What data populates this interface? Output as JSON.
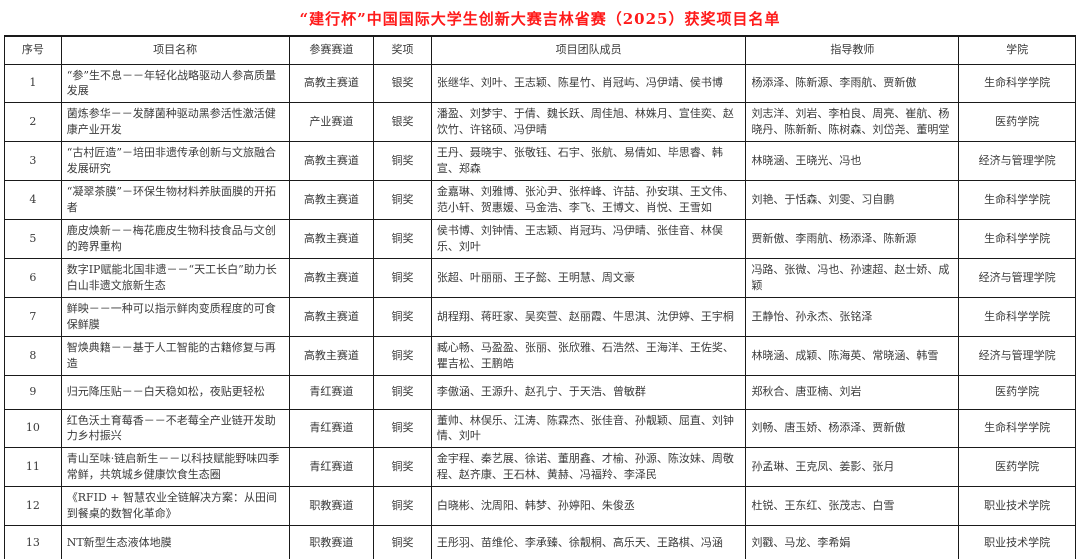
{
  "page": {
    "title": "“建行杯”中国国际大学生创新大赛吉林省赛（2025）获奖项目名单",
    "title_color": "#ff1a1a"
  },
  "table": {
    "columns": [
      "序号",
      "项目名称",
      "参赛赛道",
      "奖项",
      "项目团队成员",
      "指导教师",
      "学院"
    ],
    "rows": [
      {
        "index": "1",
        "name": "“参”生不息－－年轻化战略驱动人参高质量发展",
        "track": "高教主赛道",
        "award": "银奖",
        "members": "张继华、刘叶、王志颖、陈星竹、肖冠屿、冯伊靖、侯书博",
        "advisors": "杨添泽、陈新源、李雨航、贾新傲",
        "college": "生命科学学院"
      },
      {
        "index": "2",
        "name": "菌炼参华－－发酵菌种驱动黑参活性激活健康产业开发",
        "track": "产业赛道",
        "award": "银奖",
        "members": "潘盈、刘梦宇、于倩、魏长跃、周佳旭、林姝月、宣佳奕、赵饮竹、许铭硕、冯伊晴",
        "advisors": "刘志洋、刘岩、李柏良、周亮、崔航、杨晓丹、陈新新、陈树森、刘岱尧、董明堂",
        "college": "医药学院"
      },
      {
        "index": "3",
        "name": "“古村匠造”－培田非遗传承创新与文旅融合发展研究",
        "track": "高教主赛道",
        "award": "铜奖",
        "members": "王丹、聂晓宇、张敬钰、石宇、张航、易倩如、毕思睿、韩宣、郑森",
        "advisors": "林晓涵、王晓光、冯也",
        "college": "经济与管理学院"
      },
      {
        "index": "4",
        "name": "“凝翠茶膜”－环保生物材料养肤面膜的开拓者",
        "track": "高教主赛道",
        "award": "铜奖",
        "members": "金嘉琳、刘雅博、张沁尹、张梓峰、许喆、孙安琪、王文伟、范小轩、贺惠媛、马金浩、李飞、王博文、肖悦、王雪如",
        "advisors": "刘艳、于恬森、刘雯、习自鹏",
        "college": "生命科学学院"
      },
      {
        "index": "5",
        "name": "鹿皮焕新－－梅花鹿皮生物科技食品与文创的跨界重构",
        "track": "高教主赛道",
        "award": "铜奖",
        "members": "侯书博、刘钟情、王志颖、肖冠玙、冯伊晴、张佳音、林俣乐、刘叶",
        "advisors": "贾新傲、李雨航、杨添泽、陈新源",
        "college": "生命科学学院"
      },
      {
        "index": "6",
        "name": "数字IP赋能北国非遗－－“天工长白”助力长白山非遗文旅新生态",
        "track": "高教主赛道",
        "award": "铜奖",
        "members": "张超、叶丽丽、王子懿、王明慧、周文豪",
        "advisors": "冯路、张微、冯也、孙速超、赵士娇、成颖",
        "college": "经济与管理学院"
      },
      {
        "index": "7",
        "name": "鲜映－－一种可以指示鲜肉变质程度的可食保鲜膜",
        "track": "高教主赛道",
        "award": "铜奖",
        "members": "胡程翔、蒋旺家、吴奕萱、赵丽霞、牛思淇、沈伊婷、王宇桐",
        "advisors": "王静怡、孙永杰、张铭泽",
        "college": "生命科学学院"
      },
      {
        "index": "8",
        "name": "智焕典籍－－基于人工智能的古籍修复与再造",
        "track": "高教主赛道",
        "award": "铜奖",
        "members": "臧心畅、马盈盈、张丽、张欣雅、石浩然、王海洋、王佐奖、瞿吉松、王鹏皓",
        "advisors": "林晓涵、成颖、陈海英、常晓涵、韩雪",
        "college": "经济与管理学院"
      },
      {
        "index": "9",
        "name": "归元降压贴－－白天稳如松，夜贴更轻松",
        "track": "青红赛道",
        "award": "铜奖",
        "members": "李傲涵、王源升、赵孔宁、于天浩、曾敏群",
        "advisors": "郑秋合、唐亚楠、刘岩",
        "college": "医药学院"
      },
      {
        "index": "10",
        "name": "红色沃土育莓香－－不老莓全产业链开发助力乡村振兴",
        "track": "青红赛道",
        "award": "铜奖",
        "members": "董帅、林俣乐、江涛、陈霖杰、张佳音、孙靓颖、屈直、刘钟情、刘叶",
        "advisors": "刘畅、唐玉娇、杨添泽、贾新傲",
        "college": "生命科学学院"
      },
      {
        "index": "11",
        "name": "青山至味·链启新生－－以科技赋能野味四季常鲜，共筑城乡健康饮食生态圈",
        "track": "青红赛道",
        "award": "铜奖",
        "members": "金宇程、秦艺展、徐诺、董朋鑫、才榆、孙源、陈汝妹、周敬程、赵齐康、王石林、黄赫、冯福羚、李泽民",
        "advisors": "孙孟琳、王克凤、姜影、张月",
        "college": "医药学院"
      },
      {
        "index": "12",
        "name": "《RFID + 智慧农业全链解决方案：从田间到餐桌的数智化革命》",
        "track": "职教赛道",
        "award": "铜奖",
        "members": "白晓彬、沈周阳、韩梦、孙婷阳、朱俊丞",
        "advisors": "杜锐、王东红、张茂志、白雪",
        "college": "职业技术学院"
      },
      {
        "index": "13",
        "name": "NT新型生态液体地膜",
        "track": "职教赛道",
        "award": "铜奖",
        "members": "王彤羽、苗维伦、李承臻、徐靓桐、高乐天、王路棋、冯涵",
        "advisors": "刘戳、马龙、李希娟",
        "college": "职业技术学院"
      }
    ]
  }
}
